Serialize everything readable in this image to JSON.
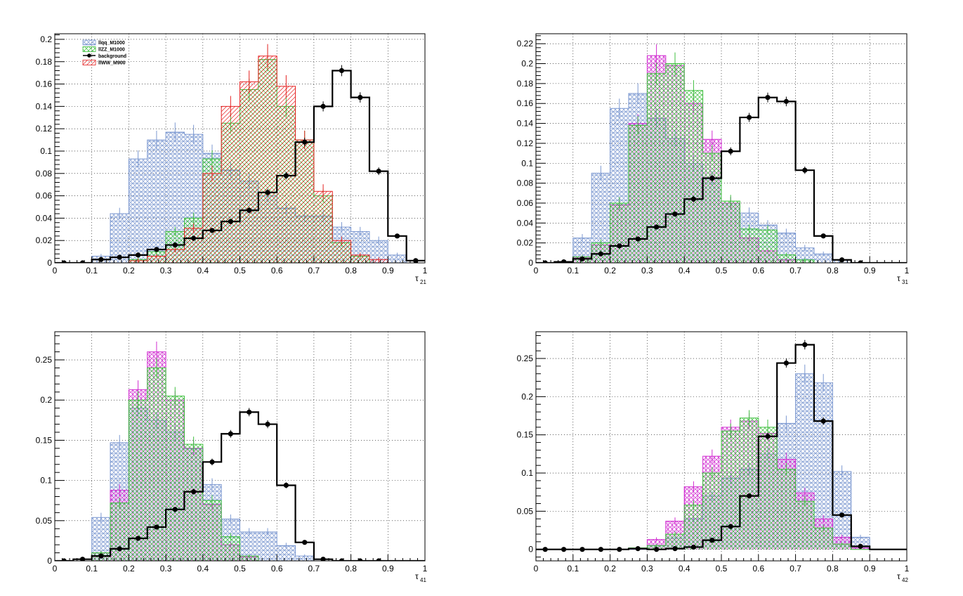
{
  "colors": {
    "bg_llqq": "#7d99d1",
    "bg_llZZ": "#3fbf3f",
    "bg_llWW": "#e52222",
    "bg_magenta": "#d12ed1",
    "background": "#000000",
    "grid": "#000000"
  },
  "legend": {
    "entries": [
      "llqq_M1000",
      "llZZ_M1000",
      "background",
      "llWW_M900"
    ]
  },
  "chart_data": [
    {
      "type": "histogram",
      "title": "",
      "xlabel": "τ",
      "xlabel_sub": "21",
      "xlim": [
        0,
        1
      ],
      "ylim": [
        0,
        0.205
      ],
      "x_ticks": [
        "0",
        "0.1",
        "0.2",
        "0.3",
        "0.4",
        "0.5",
        "0.6",
        "0.7",
        "0.8",
        "0.9",
        "1"
      ],
      "y_ticks": [
        0,
        0.02,
        0.04,
        0.06,
        0.08,
        0.1,
        0.12,
        0.14,
        0.16,
        0.18,
        0.2
      ],
      "y_tick_labels": [
        "0",
        "0.02",
        "0.04",
        "0.06",
        "0.08",
        "0.1",
        "0.12",
        "0.14",
        "0.16",
        "0.18",
        "0.2"
      ],
      "bin_edges": [
        0,
        0.05,
        0.1,
        0.15,
        0.2,
        0.25,
        0.3,
        0.35,
        0.4,
        0.45,
        0.5,
        0.55,
        0.6,
        0.65,
        0.7,
        0.75,
        0.8,
        0.85,
        0.9,
        0.95,
        1.0
      ],
      "grid": true,
      "legend_position": "top-left",
      "series": [
        {
          "name": "llqq_M1000",
          "style": "blue",
          "values": [
            0,
            0,
            0.006,
            0.044,
            0.093,
            0.11,
            0.117,
            0.115,
            0.098,
            0.083,
            0.073,
            0.06,
            0.049,
            0.042,
            0.042,
            0.032,
            0.028,
            0.02,
            0.007,
            0
          ]
        },
        {
          "name": "llZZ_M1000",
          "style": "green",
          "values": [
            0,
            0,
            0,
            0,
            0.003,
            0.01,
            0.028,
            0.04,
            0.093,
            0.125,
            0.155,
            0.182,
            0.14,
            0.11,
            0.06,
            0.018,
            0.006,
            0,
            0,
            0
          ]
        },
        {
          "name": "llWW_M900",
          "style": "red",
          "values": [
            0,
            0,
            0,
            0,
            0.002,
            0.006,
            0.012,
            0.031,
            0.08,
            0.14,
            0.162,
            0.185,
            0.158,
            0.11,
            0.064,
            0.02,
            0.007,
            0.003,
            0,
            0
          ]
        },
        {
          "name": "background",
          "style": "black",
          "values": [
            0,
            0,
            0.003,
            0.005,
            0.007,
            0.012,
            0.016,
            0.022,
            0.029,
            0.037,
            0.047,
            0.063,
            0.078,
            0.108,
            0.14,
            0.172,
            0.148,
            0.082,
            0.024,
            0.002
          ]
        }
      ]
    },
    {
      "type": "histogram",
      "title": "",
      "xlabel": "τ",
      "xlabel_sub": "31",
      "xlim": [
        0,
        1
      ],
      "ylim": [
        0,
        0.23
      ],
      "x_ticks": [
        "0",
        "0.1",
        "0.2",
        "0.3",
        "0.4",
        "0.5",
        "0.6",
        "0.7",
        "0.8",
        "0.9",
        "1"
      ],
      "y_ticks": [
        0,
        0.02,
        0.04,
        0.06,
        0.08,
        0.1,
        0.12,
        0.14,
        0.16,
        0.18,
        0.2,
        0.22
      ],
      "y_tick_labels": [
        "0",
        "0.02",
        "0.04",
        "0.06",
        "0.08",
        "0.1",
        "0.12",
        "0.14",
        "0.16",
        "0.18",
        "0.2",
        "0.22"
      ],
      "bin_edges": [
        0,
        0.05,
        0.1,
        0.15,
        0.2,
        0.25,
        0.3,
        0.35,
        0.4,
        0.45,
        0.5,
        0.55,
        0.6,
        0.65,
        0.7,
        0.75,
        0.8,
        0.85,
        0.9,
        0.95,
        1.0
      ],
      "grid": true,
      "series": [
        {
          "name": "",
          "style": "blue",
          "values": [
            0,
            0,
            0.025,
            0.09,
            0.155,
            0.17,
            0.145,
            0.125,
            0.1,
            0.085,
            0.06,
            0.05,
            0.038,
            0.03,
            0.015,
            0.009,
            0.003,
            0,
            0,
            0
          ]
        },
        {
          "name": "",
          "style": "magenta",
          "values": [
            0,
            0,
            0.005,
            0.018,
            0.058,
            0.14,
            0.208,
            0.198,
            0.16,
            0.124,
            0.06,
            0.025,
            0.012,
            0.003,
            0,
            0,
            0,
            0,
            0,
            0
          ]
        },
        {
          "name": "",
          "style": "green",
          "values": [
            0,
            0,
            0.006,
            0.02,
            0.06,
            0.138,
            0.19,
            0.2,
            0.173,
            0.11,
            0.062,
            0.034,
            0.033,
            0.008,
            0.003,
            0,
            0,
            0,
            0,
            0
          ]
        },
        {
          "name": "",
          "style": "black",
          "values": [
            0,
            0.001,
            0.004,
            0.009,
            0.017,
            0.024,
            0.036,
            0.049,
            0.064,
            0.085,
            0.112,
            0.146,
            0.166,
            0.162,
            0.093,
            0.027,
            0.003,
            0,
            0,
            0
          ]
        }
      ]
    },
    {
      "type": "histogram",
      "title": "",
      "xlabel": "τ",
      "xlabel_sub": "41",
      "xlim": [
        0,
        1
      ],
      "ylim": [
        0,
        0.285
      ],
      "x_ticks": [
        "0",
        "0.1",
        "0.2",
        "0.3",
        "0.4",
        "0.5",
        "0.6",
        "0.7",
        "0.8",
        "0.9",
        "1"
      ],
      "y_ticks": [
        0,
        0.05,
        0.1,
        0.15,
        0.2,
        0.25
      ],
      "y_tick_labels": [
        "0",
        "0.05",
        "0.1",
        "0.15",
        "0.2",
        "0.25"
      ],
      "bin_edges": [
        0,
        0.05,
        0.1,
        0.15,
        0.2,
        0.25,
        0.3,
        0.35,
        0.4,
        0.45,
        0.5,
        0.55,
        0.6,
        0.65,
        0.7,
        0.75,
        0.8,
        0.85,
        0.9,
        0.95,
        1.0
      ],
      "grid": true,
      "series": [
        {
          "name": "",
          "style": "blue",
          "values": [
            0,
            0,
            0.054,
            0.147,
            0.19,
            0.175,
            0.16,
            0.14,
            0.095,
            0.052,
            0.036,
            0.036,
            0.019,
            0.006,
            0,
            0,
            0,
            0,
            0,
            0
          ]
        },
        {
          "name": "",
          "style": "magenta",
          "values": [
            0,
            0,
            0.01,
            0.088,
            0.213,
            0.26,
            0.2,
            0.14,
            0.07,
            0.02,
            0.005,
            0,
            0,
            0,
            0,
            0,
            0,
            0,
            0,
            0
          ]
        },
        {
          "name": "",
          "style": "green",
          "values": [
            0,
            0,
            0.01,
            0.072,
            0.2,
            0.24,
            0.205,
            0.145,
            0.075,
            0.03,
            0.006,
            0,
            0,
            0,
            0,
            0,
            0,
            0,
            0,
            0
          ]
        },
        {
          "name": "",
          "style": "black",
          "values": [
            0,
            0.002,
            0.006,
            0.015,
            0.028,
            0.042,
            0.064,
            0.086,
            0.123,
            0.158,
            0.185,
            0.17,
            0.094,
            0.023,
            0.002,
            0,
            0,
            0,
            0,
            0
          ]
        }
      ]
    },
    {
      "type": "histogram",
      "title": "",
      "xlabel": "τ",
      "xlabel_sub": "42",
      "xlim": [
        0,
        1
      ],
      "ylim": [
        -0.015,
        0.285
      ],
      "x_ticks": [
        "0",
        "0.1",
        "0.2",
        "0.3",
        "0.4",
        "0.5",
        "0.6",
        "0.7",
        "0.8",
        "0.9",
        "1"
      ],
      "y_ticks": [
        0,
        0.05,
        0.1,
        0.15,
        0.2,
        0.25
      ],
      "y_tick_labels": [
        "0",
        "0.05",
        "0.1",
        "0.15",
        "0.2",
        "0.25"
      ],
      "bin_edges": [
        0,
        0.05,
        0.1,
        0.15,
        0.2,
        0.25,
        0.3,
        0.35,
        0.4,
        0.45,
        0.5,
        0.55,
        0.6,
        0.65,
        0.7,
        0.75,
        0.8,
        0.85,
        0.9,
        0.95,
        1.0
      ],
      "grid": true,
      "series": [
        {
          "name": "",
          "style": "blue",
          "values": [
            0,
            0,
            0,
            0,
            0,
            0,
            0.005,
            0.015,
            0.04,
            0.07,
            0.093,
            0.105,
            0.125,
            0.165,
            0.23,
            0.218,
            0.102,
            0.016,
            0,
            0
          ]
        },
        {
          "name": "",
          "style": "magenta",
          "values": [
            0,
            0,
            0,
            0,
            0,
            0.002,
            0.013,
            0.037,
            0.082,
            0.122,
            0.16,
            0.168,
            0.152,
            0.118,
            0.074,
            0.04,
            0.016,
            0.002,
            0,
            0
          ]
        },
        {
          "name": "",
          "style": "green",
          "values": [
            0,
            0,
            0,
            0,
            0,
            0.002,
            0.005,
            0.02,
            0.058,
            0.1,
            0.155,
            0.172,
            0.16,
            0.105,
            0.063,
            0.028,
            0.007,
            0,
            0,
            0
          ]
        },
        {
          "name": "",
          "style": "black",
          "values": [
            0,
            0,
            0,
            0,
            0,
            0.001,
            0,
            0.001,
            0.003,
            0.012,
            0.03,
            0.07,
            0.148,
            0.244,
            0.268,
            0.168,
            0.045,
            0.004,
            0,
            0
          ]
        }
      ]
    }
  ]
}
